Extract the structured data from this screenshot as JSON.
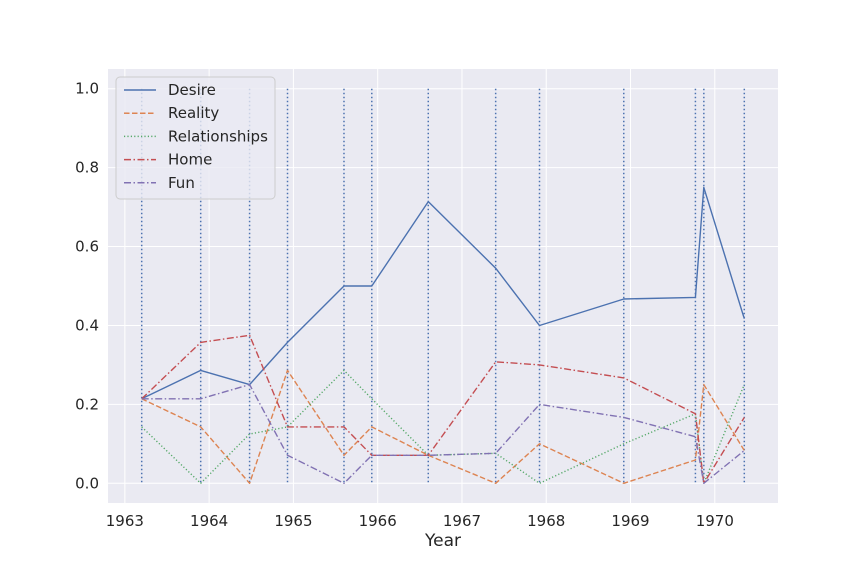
{
  "chart_data": {
    "type": "line",
    "title": "",
    "xlabel": "Year",
    "ylabel": "",
    "xlim": [
      1962.8,
      1970.75
    ],
    "ylim": [
      -0.05,
      1.05
    ],
    "x_ticks": [
      1963,
      1964,
      1965,
      1966,
      1967,
      1968,
      1969,
      1970
    ],
    "x_tick_labels": [
      "1963",
      "1964",
      "1965",
      "1966",
      "1967",
      "1968",
      "1969",
      "1970"
    ],
    "y_ticks": [
      0.0,
      0.2,
      0.4,
      0.6,
      0.8,
      1.0
    ],
    "y_tick_labels": [
      "0.0",
      "0.2",
      "0.4",
      "0.6",
      "0.8",
      "1.0"
    ],
    "grid": true,
    "legend_position": "upper-left",
    "x": [
      1963.2,
      1963.9,
      1964.48,
      1964.93,
      1965.6,
      1965.93,
      1966.6,
      1967.4,
      1967.92,
      1968.92,
      1969.77,
      1969.87,
      1970.35
    ],
    "event_lines": {
      "x": [
        1963.2,
        1963.9,
        1964.48,
        1964.93,
        1965.6,
        1965.93,
        1966.6,
        1967.4,
        1967.92,
        1968.92,
        1969.77,
        1969.87,
        1970.35
      ],
      "ymin": 0.0,
      "ymax": 1.0,
      "color": "#4c72b0"
    },
    "series": [
      {
        "name": "Desire",
        "style": "solid",
        "color": "#4c72b0",
        "values": [
          0.214,
          0.286,
          0.25,
          0.357,
          0.5,
          0.5,
          0.714,
          0.545,
          0.4,
          0.467,
          0.471,
          0.75,
          0.417
        ]
      },
      {
        "name": "Reality",
        "style": "dashed",
        "color": "#dd8452",
        "values": [
          0.214,
          0.143,
          0.0,
          0.286,
          0.071,
          0.143,
          0.071,
          0.0,
          0.1,
          0.0,
          0.059,
          0.25,
          0.083
        ]
      },
      {
        "name": "Relationships",
        "style": "dotted",
        "color": "#55a868",
        "values": [
          0.143,
          0.0,
          0.125,
          0.143,
          0.286,
          0.214,
          0.071,
          0.076,
          0.0,
          0.1,
          0.176,
          0.0,
          0.25
        ]
      },
      {
        "name": "Home",
        "style": "dashdot",
        "color": "#c44e52",
        "values": [
          0.214,
          0.357,
          0.375,
          0.143,
          0.143,
          0.071,
          0.071,
          0.308,
          0.3,
          0.267,
          0.176,
          0.0,
          0.167
        ]
      },
      {
        "name": "Fun",
        "style": "dashdot",
        "color": "#8172b3",
        "values": [
          0.214,
          0.214,
          0.25,
          0.071,
          0.0,
          0.071,
          0.071,
          0.076,
          0.2,
          0.167,
          0.118,
          0.0,
          0.083
        ]
      }
    ]
  }
}
